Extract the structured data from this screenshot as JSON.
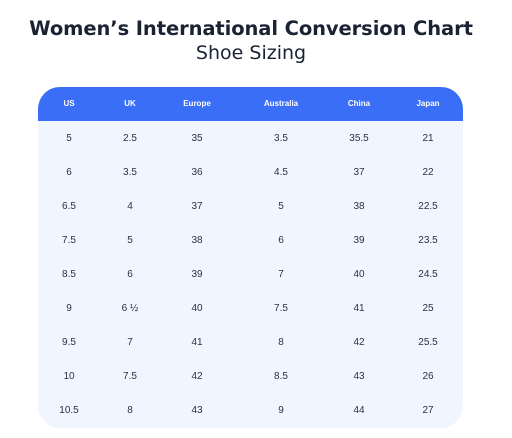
{
  "title": "Women’s International Conversion Chart",
  "subtitle": "Shoe Sizing",
  "table": {
    "headers": [
      "US",
      "UK",
      "Europe",
      "Australia",
      "China",
      "Japan"
    ],
    "rows": [
      [
        "5",
        "2.5",
        "35",
        "3.5",
        "35.5",
        "21"
      ],
      [
        "6",
        "3.5",
        "36",
        "4.5",
        "37",
        "22"
      ],
      [
        "6.5",
        "4",
        "37",
        "5",
        "38",
        "22.5"
      ],
      [
        "7.5",
        "5",
        "38",
        "6",
        "39",
        "23.5"
      ],
      [
        "8.5",
        "6",
        "39",
        "7",
        "40",
        "24.5"
      ],
      [
        "9",
        "6 ½",
        "40",
        "7.5",
        "41",
        "25"
      ],
      [
        "9.5",
        "7",
        "41",
        "8",
        "42",
        "25.5"
      ],
      [
        "10",
        "7.5",
        "42",
        "8.5",
        "43",
        "26"
      ],
      [
        "10.5",
        "8",
        "43",
        "9",
        "44",
        "27"
      ]
    ]
  },
  "colors": {
    "header_background": "#3a6ef6",
    "table_background": "#f1f5ff",
    "title_text": "#1b2233"
  }
}
